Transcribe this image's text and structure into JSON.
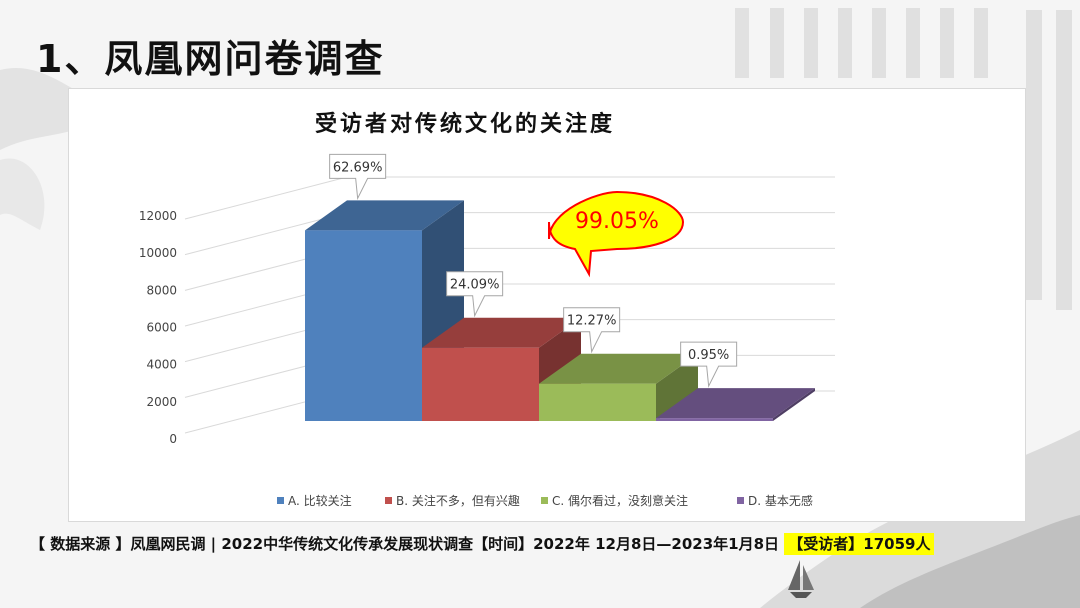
{
  "slide": {
    "title": "1、凤凰网问卷调查"
  },
  "chart_data": {
    "type": "bar",
    "title": "受访者对传统文化的关注度",
    "categories": [
      "A. 比较关注",
      "B. 关注不多，但有兴趣",
      "C. 偶尔看过，没刻意关注",
      "D. 基本无感"
    ],
    "values": [
      10690,
      4108,
      2092,
      162
    ],
    "data_labels": [
      "62.69%",
      "24.09%",
      "12.27%",
      "0.95%"
    ],
    "colors": [
      "#4f81bd",
      "#c0504d",
      "#9bbb59",
      "#8064a2"
    ],
    "yticks": [
      "0",
      "2000",
      "4000",
      "6000",
      "8000",
      "10000",
      "12000"
    ],
    "ylim": [
      0,
      12000
    ],
    "legend_position": "bottom",
    "callout": {
      "text": "99.05%",
      "fill": "#ffff00",
      "border": "#ff0000",
      "text_color": "#ff0000"
    }
  },
  "footer": {
    "source_text": "【 数据来源 】凤凰网民调 | 2022中华传统文化传承发展现状调查【时间】2022年 12月8日—2023年1月8日",
    "respondents": "【受访者】17059人"
  }
}
